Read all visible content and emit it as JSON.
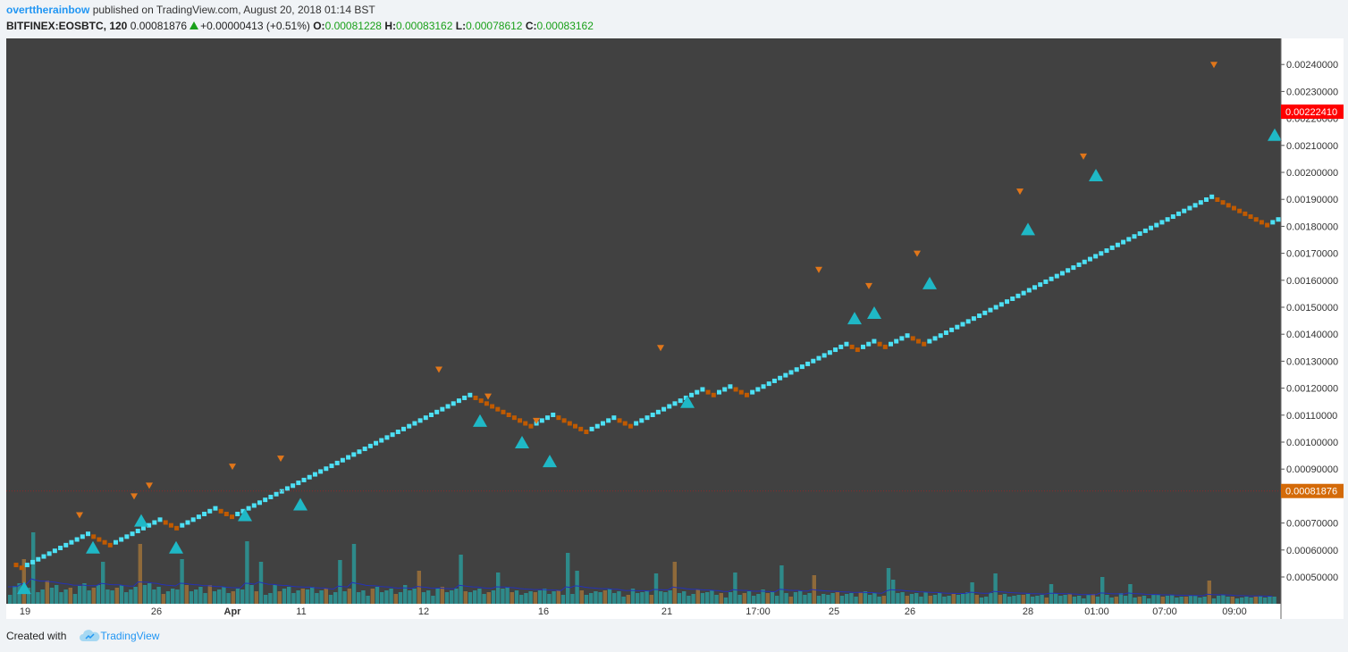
{
  "header": {
    "author": "overttherainbow",
    "published_text": "published on TradingView.com, August 20, 2018 01:14 BST",
    "symbol": "BITFINEX:EOSBTC, 120",
    "last": "0.00081876",
    "change": "+0.00000413 (+0.51%)",
    "o_label": "O:",
    "o_value": "0.00081228",
    "h_label": "H:",
    "h_value": "0.00083162",
    "l_label": "L:",
    "l_value": "0.00078612",
    "c_label": "C:",
    "c_value": "0.00083162"
  },
  "footer": {
    "created_with": "Created with",
    "brand": "TradingView"
  },
  "colors": {
    "background": "#414141",
    "up_brick": "#4de1f5",
    "down_brick": "#c05a00",
    "up_marker": "#1fb8c6",
    "down_marker": "#e0761a",
    "volume_up": "#2e8a8a",
    "volume_down": "#8f6a3a",
    "ma_line": "#2432b8",
    "last_price_label": "#ff0000",
    "current_price_label": "#d46a08"
  },
  "chart_data": {
    "type": "renko",
    "y_axis_ticks": [
      "0.00240000",
      "0.00230000",
      "0.00220000",
      "0.00210000",
      "0.00200000",
      "0.00190000",
      "0.00180000",
      "0.00170000",
      "0.00160000",
      "0.00150000",
      "0.00140000",
      "0.00130000",
      "0.00120000",
      "0.00110000",
      "0.00100000",
      "0.00090000",
      "0.00070000",
      "0.00060000",
      "0.00050000"
    ],
    "y_axis_range": [
      0.00046,
      0.00245
    ],
    "x_axis_labels": [
      "19",
      "26",
      "Apr",
      "11",
      "12",
      "16",
      "21",
      "17:00",
      "25",
      "26",
      "28",
      "01:00",
      "07:00",
      "09:00"
    ],
    "last_price_label": "0.00222410",
    "current_price_label": "0.00081876",
    "current_price": 0.00081876,
    "brick_size": 1.05e-05,
    "brick_sequence_start": 0.000555,
    "brick_sequence": [
      {
        "dir": "down",
        "count": 2
      },
      {
        "dir": "up",
        "count": 12
      },
      {
        "dir": "down",
        "count": 4
      },
      {
        "dir": "up",
        "count": 9
      },
      {
        "dir": "down",
        "count": 3
      },
      {
        "dir": "up",
        "count": 7
      },
      {
        "dir": "down",
        "count": 3
      },
      {
        "dir": "up",
        "count": 43
      },
      {
        "dir": "down",
        "count": 11
      },
      {
        "dir": "up",
        "count": 4
      },
      {
        "dir": "down",
        "count": 6
      },
      {
        "dir": "up",
        "count": 5
      },
      {
        "dir": "down",
        "count": 3
      },
      {
        "dir": "up",
        "count": 13
      },
      {
        "dir": "down",
        "count": 2
      },
      {
        "dir": "up",
        "count": 3
      },
      {
        "dir": "down",
        "count": 3
      },
      {
        "dir": "up",
        "count": 18
      },
      {
        "dir": "down",
        "count": 2
      },
      {
        "dir": "up",
        "count": 3
      },
      {
        "dir": "down",
        "count": 2
      },
      {
        "dir": "up",
        "count": 4
      },
      {
        "dir": "down",
        "count": 3
      },
      {
        "dir": "up",
        "count": 52
      },
      {
        "dir": "down",
        "count": 10
      },
      {
        "dir": "up",
        "count": 2
      }
    ],
    "buy_markers_price": [
      0.00046,
      0.00061,
      0.00071,
      0.00061,
      0.00073,
      0.00077,
      0.00108,
      0.001,
      0.00093,
      0.00115,
      0.00146,
      0.00148,
      0.00159,
      0.00179,
      0.00199,
      0.00214
    ],
    "sell_markers_price": [
      0.00073,
      0.0008,
      0.00084,
      0.00091,
      0.00094,
      0.00127,
      0.00117,
      0.00108,
      0.00135,
      0.00164,
      0.00158,
      0.0017,
      0.00193,
      0.00206,
      0.0024
    ]
  }
}
